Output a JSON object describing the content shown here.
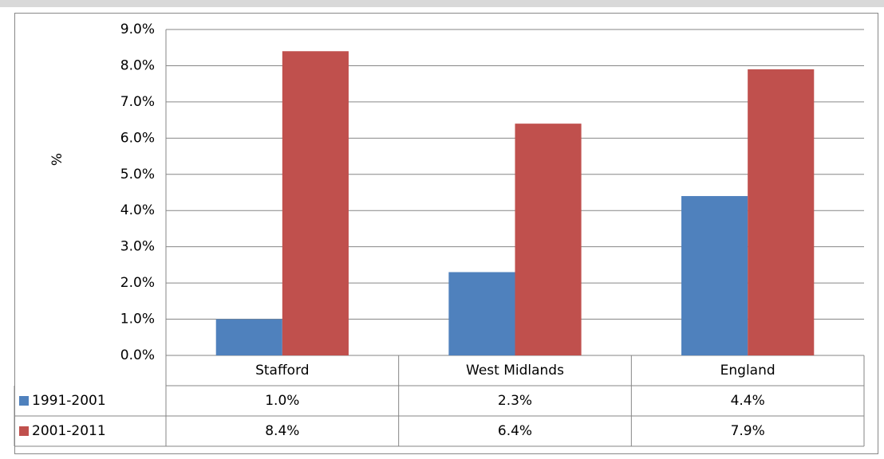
{
  "chart_data": {
    "type": "bar",
    "y_label": "%",
    "categories": [
      "Stafford",
      "West Midlands",
      "England"
    ],
    "series": [
      {
        "name": "1991-2001",
        "color": "#4f81bd",
        "values": [
          1.0,
          2.3,
          4.4
        ],
        "value_labels": [
          "1.0%",
          "2.3%",
          "4.4%"
        ]
      },
      {
        "name": "2001-2011",
        "color": "#c0504d",
        "values": [
          8.4,
          6.4,
          7.9
        ],
        "value_labels": [
          "8.4%",
          "6.4%",
          "7.9%"
        ]
      }
    ],
    "ylim": [
      0,
      9
    ],
    "yticks": [
      {
        "value": 0,
        "label": "0.0%"
      },
      {
        "value": 1,
        "label": "1.0%"
      },
      {
        "value": 2,
        "label": "2.0%"
      },
      {
        "value": 3,
        "label": "3.0%"
      },
      {
        "value": 4,
        "label": "4.0%"
      },
      {
        "value": 5,
        "label": "5.0%"
      },
      {
        "value": 6,
        "label": "6.0%"
      },
      {
        "value": 7,
        "label": "7.0%"
      },
      {
        "value": 8,
        "label": "8.0%"
      },
      {
        "value": 9,
        "label": "9.0%"
      }
    ],
    "grid": true
  }
}
